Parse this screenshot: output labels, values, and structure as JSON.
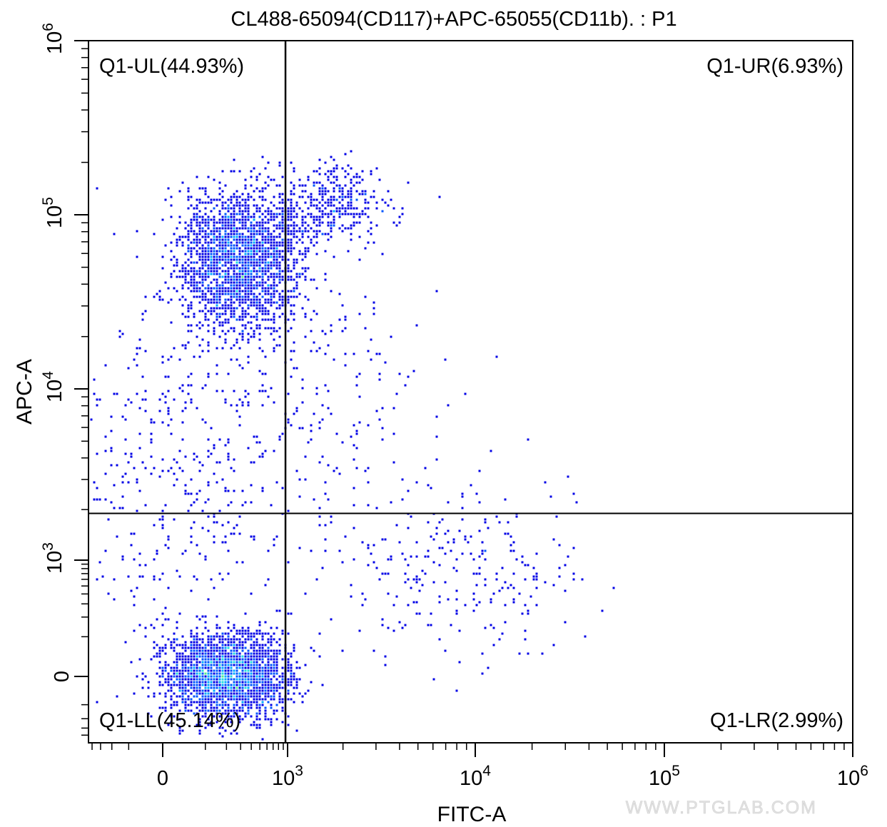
{
  "chart_data": {
    "type": "scatter",
    "title": "CL488-65094(CD117)+APC-65055(CD11b). : P1",
    "xlabel": "FITC-A",
    "ylabel": "APC-A",
    "x_scale": "biexponential",
    "y_scale": "biexponential",
    "xlim": [
      -450,
      1000000
    ],
    "ylim": [
      -540,
      1000000
    ],
    "x_ticks": [
      {
        "value": 0,
        "label": "0"
      },
      {
        "value": 1000,
        "base": "10",
        "exp": "3"
      },
      {
        "value": 10000,
        "base": "10",
        "exp": "4"
      },
      {
        "value": 100000,
        "base": "10",
        "exp": "5"
      },
      {
        "value": 1000000,
        "base": "10",
        "exp": "6"
      }
    ],
    "y_ticks": [
      {
        "value": 0,
        "label": "0"
      },
      {
        "value": 1000,
        "base": "10",
        "exp": "3"
      },
      {
        "value": 10000,
        "base": "10",
        "exp": "4"
      },
      {
        "value": 100000,
        "base": "10",
        "exp": "5"
      },
      {
        "value": 1000000,
        "base": "10",
        "exp": "6"
      }
    ],
    "quadrant_gate": {
      "x": 950,
      "y": 1900
    },
    "quadrants": [
      {
        "name": "Q1-UL",
        "label": "Q1-UL(44.93%)",
        "percent": 44.93,
        "position": "top-left"
      },
      {
        "name": "Q1-UR",
        "label": "Q1-UR(6.93%)",
        "percent": 6.93,
        "position": "top-right"
      },
      {
        "name": "Q1-LL",
        "label": "Q1-LL(45.14%)",
        "percent": 45.14,
        "position": "bottom-left"
      },
      {
        "name": "Q1-LR",
        "label": "Q1-LR(2.99%)",
        "percent": 2.99,
        "position": "bottom-right"
      }
    ],
    "populations": [
      {
        "center_x": 300,
        "center_y": 55000,
        "share": 0.449
      },
      {
        "center_x": 1800,
        "center_y": 120000,
        "share": 0.069
      },
      {
        "center_x": 200,
        "center_y": 0,
        "share": 0.451
      },
      {
        "center_x": 8000,
        "center_y": 700,
        "share": 0.03
      }
    ],
    "density_colors": [
      "#0000e6",
      "#0055ff",
      "#00aaff",
      "#22dddd",
      "#55ee88",
      "#aaff22"
    ],
    "grid": false,
    "legend": "none",
    "watermark": "WWW.PTGLAB.COM"
  }
}
